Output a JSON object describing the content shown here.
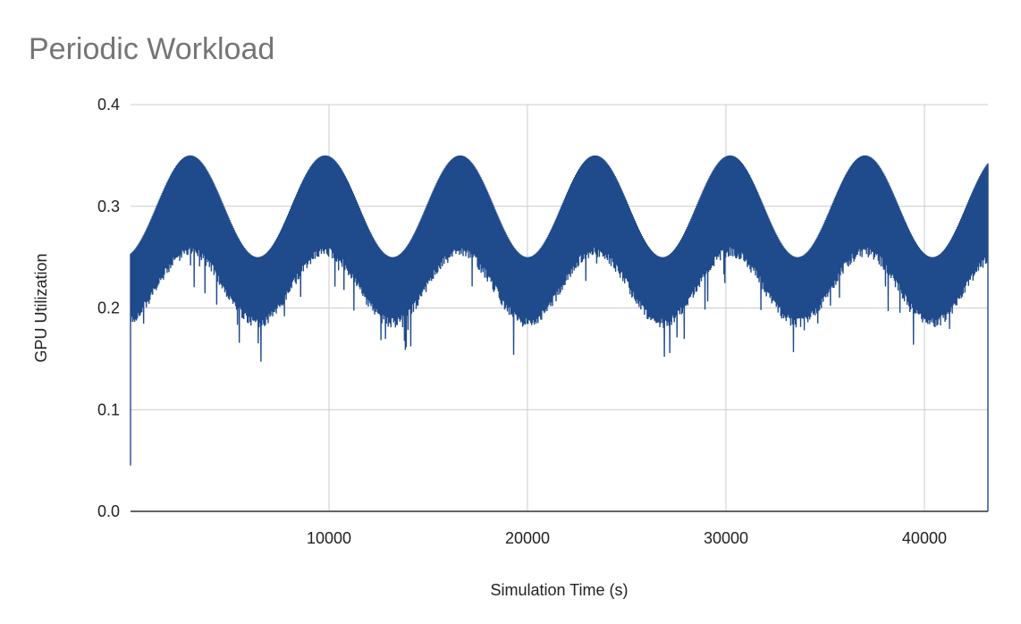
{
  "chart_data": {
    "type": "line",
    "title": "Periodic Workload",
    "xlabel": "Simulation Time (s)",
    "ylabel": "GPU Utilization",
    "xlim": [
      0,
      43200
    ],
    "ylim": [
      0,
      0.4
    ],
    "x_ticks": [
      10000,
      20000,
      30000,
      40000
    ],
    "x_tick_labels": [
      "10000",
      "20000",
      "30000",
      "40000"
    ],
    "y_ticks": [
      0,
      0.1,
      0.2,
      0.3,
      0.4
    ],
    "y_tick_labels": [
      "0.0",
      "0.1",
      "0.2",
      "0.3",
      "0.4"
    ],
    "grid": true,
    "legend": "none",
    "series": [
      {
        "color": "#1f4a8c",
        "description_of_shape": "dense oscillating signal; upper envelope sinusoid between 0.25 and 0.35 with period ~6800 s, lower band ~0.06 below envelope with spikes to ~0.17",
        "period_s": 6800,
        "upper_envelope": {
          "min": 0.25,
          "max": 0.35
        },
        "lower_band": {
          "min": 0.19,
          "max": 0.26
        },
        "start_value": 0.045,
        "end_value": 0.0
      }
    ]
  }
}
